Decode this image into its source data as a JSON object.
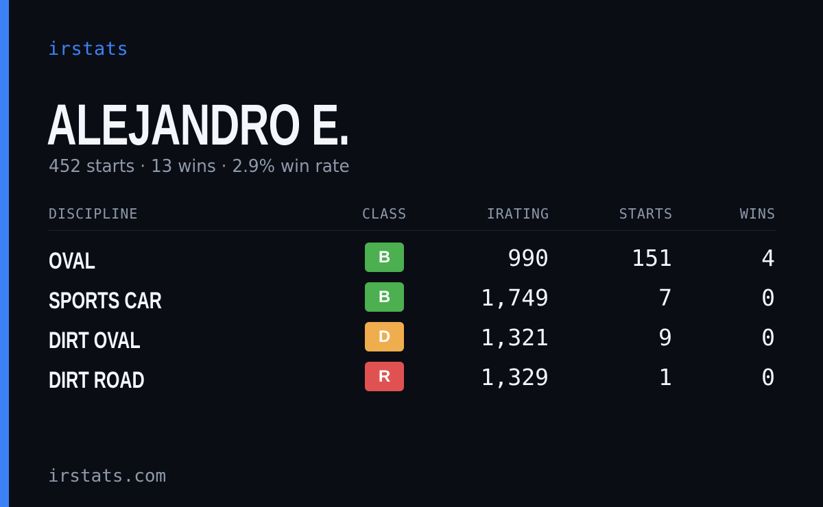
{
  "brand": {
    "name": "irstats"
  },
  "driver": {
    "name": "ALEJANDRO E.",
    "summary": "452 starts · 13 wins · 2.9% win rate"
  },
  "table": {
    "headers": {
      "discipline": "DISCIPLINE",
      "class": "CLASS",
      "irating": "IRATING",
      "starts": "STARTS",
      "wins": "WINS"
    },
    "rows": [
      {
        "discipline": "OVAL",
        "class": "B",
        "class_color": "#4caf50",
        "irating": "990",
        "starts": "151",
        "wins": "4"
      },
      {
        "discipline": "SPORTS CAR",
        "class": "B",
        "class_color": "#4caf50",
        "irating": "1,749",
        "starts": "7",
        "wins": "0"
      },
      {
        "discipline": "DIRT OVAL",
        "class": "D",
        "class_color": "#f0ad4e",
        "irating": "1,321",
        "starts": "9",
        "wins": "0"
      },
      {
        "discipline": "DIRT ROAD",
        "class": "R",
        "class_color": "#e05252",
        "irating": "1,329",
        "starts": "1",
        "wins": "0"
      }
    ]
  },
  "footer": {
    "domain": "irstats.com"
  },
  "colors": {
    "accent": "#3b82f6",
    "background": "#0a0d14",
    "muted_text": "#8f99aa",
    "primary_text": "#f4f6fb"
  }
}
